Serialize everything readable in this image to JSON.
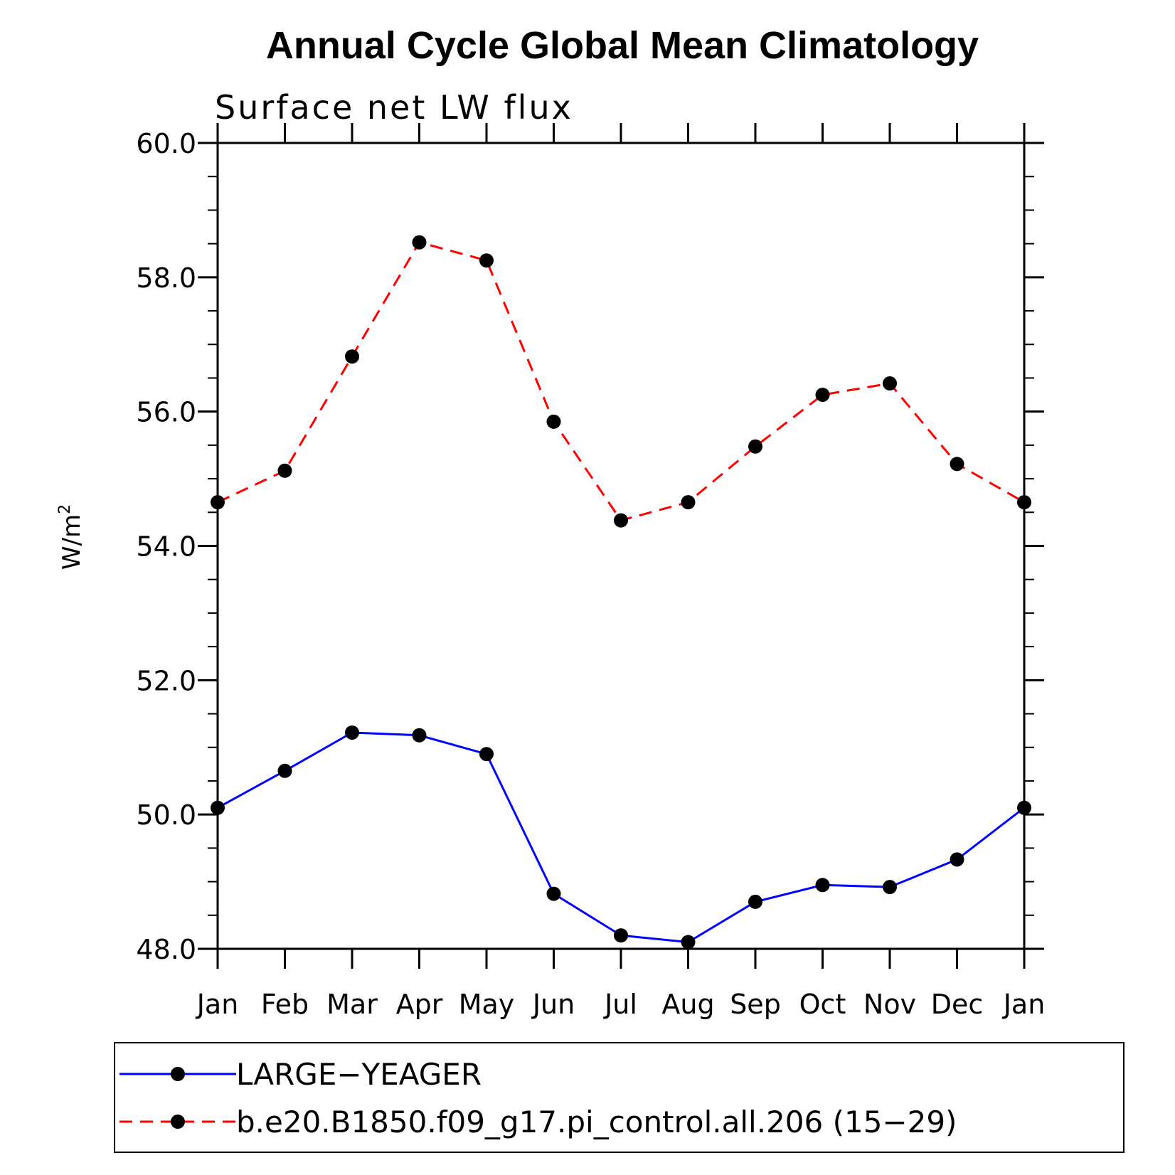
{
  "chart_data": {
    "type": "line",
    "title": "Annual Cycle Global Mean Climatology",
    "subtitle": "Surface net LW flux",
    "ylabel_base": "W/m",
    "ylabel_sup": "2",
    "ylim": [
      48.0,
      60.0
    ],
    "yticks": [
      "48.0",
      "50.0",
      "52.0",
      "54.0",
      "56.0",
      "58.0",
      "60.0"
    ],
    "categories": [
      "Jan",
      "Feb",
      "Mar",
      "Apr",
      "May",
      "Jun",
      "Jul",
      "Aug",
      "Sep",
      "Oct",
      "Nov",
      "Dec",
      "Jan"
    ],
    "grid": false,
    "legend_position": "bottom",
    "series": [
      {
        "name": "LARGE−YEAGER",
        "color": "#0000ff",
        "dash": "solid",
        "marker": "circle",
        "values": [
          50.1,
          50.65,
          51.22,
          51.18,
          50.9,
          48.82,
          48.2,
          48.1,
          48.7,
          48.95,
          48.92,
          49.33,
          50.1
        ]
      },
      {
        "name": "b.e20.B1850.f09_g17.pi_control.all.206 (15−29)",
        "color": "#ff0000",
        "dash": "dashed",
        "marker": "circle",
        "values": [
          54.65,
          55.12,
          56.82,
          58.52,
          58.25,
          55.85,
          54.38,
          54.65,
          55.48,
          56.25,
          56.42,
          55.22,
          54.65
        ]
      }
    ]
  }
}
